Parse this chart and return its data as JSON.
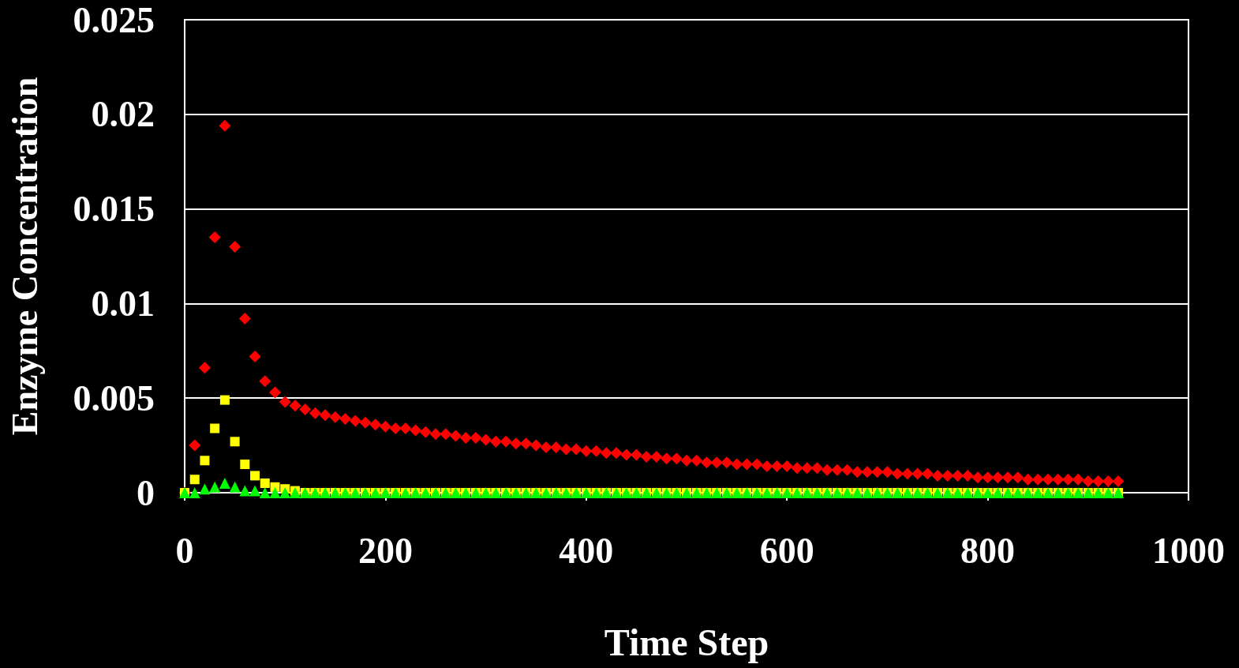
{
  "chart_data": {
    "type": "scatter",
    "xlabel": "Time Step",
    "ylabel": "Enzyme Concentration",
    "x": [
      0,
      10,
      20,
      30,
      40,
      50,
      60,
      70,
      80,
      90,
      100,
      110,
      120,
      130,
      140,
      150,
      160,
      170,
      180,
      190,
      200,
      210,
      220,
      230,
      240,
      250,
      260,
      270,
      280,
      290,
      300,
      310,
      320,
      330,
      340,
      350,
      360,
      370,
      380,
      390,
      400,
      410,
      420,
      430,
      440,
      450,
      460,
      470,
      480,
      490,
      500,
      510,
      520,
      530,
      540,
      550,
      560,
      570,
      580,
      590,
      600,
      610,
      620,
      630,
      640,
      650,
      660,
      670,
      680,
      690,
      700,
      710,
      720,
      730,
      740,
      750,
      760,
      770,
      780,
      790,
      800,
      810,
      820,
      830,
      840,
      850,
      860,
      870,
      880,
      890,
      900,
      910,
      920,
      930
    ],
    "series": [
      {
        "color": "#ff0000",
        "marker": "diamond",
        "values": [
          0,
          0.0025,
          0.0066,
          0.0135,
          0.0194,
          0.013,
          0.0092,
          0.0072,
          0.0059,
          0.0053,
          0.0048,
          0.0046,
          0.0044,
          0.0042,
          0.0041,
          0.004,
          0.0039,
          0.0038,
          0.0037,
          0.0036,
          0.0035,
          0.0034,
          0.0034,
          0.0033,
          0.0032,
          0.0031,
          0.0031,
          0.003,
          0.0029,
          0.0029,
          0.0028,
          0.0027,
          0.0027,
          0.0026,
          0.0026,
          0.0025,
          0.0024,
          0.0024,
          0.0023,
          0.0023,
          0.0022,
          0.0022,
          0.0021,
          0.0021,
          0.002,
          0.002,
          0.0019,
          0.0019,
          0.0018,
          0.0018,
          0.0017,
          0.0017,
          0.0016,
          0.0016,
          0.0016,
          0.0015,
          0.0015,
          0.0015,
          0.0014,
          0.0014,
          0.0014,
          0.0013,
          0.0013,
          0.0013,
          0.0012,
          0.0012,
          0.0012,
          0.0011,
          0.0011,
          0.0011,
          0.0011,
          0.001,
          0.001,
          0.001,
          0.001,
          0.0009,
          0.0009,
          0.0009,
          0.0009,
          0.0008,
          0.0008,
          0.0008,
          0.0008,
          0.0008,
          0.0007,
          0.0007,
          0.0007,
          0.0007,
          0.0007,
          0.0007,
          0.0006,
          0.0006,
          0.0006,
          0.0006
        ]
      },
      {
        "color": "#ffff00",
        "marker": "square",
        "values": [
          0,
          0.0007,
          0.0017,
          0.0034,
          0.0049,
          0.0027,
          0.0015,
          0.0009,
          0.0005,
          0.0003,
          0.0002,
          0.0001,
          0,
          0,
          0,
          0,
          0,
          0,
          0,
          0,
          0,
          0,
          0,
          0,
          0,
          0,
          0,
          0,
          0,
          0,
          0,
          0,
          0,
          0,
          0,
          0,
          0,
          0,
          0,
          0,
          0,
          0,
          0,
          0,
          0,
          0,
          0,
          0,
          0,
          0,
          0,
          0,
          0,
          0,
          0,
          0,
          0,
          0,
          0,
          0,
          0,
          0,
          0,
          0,
          0,
          0,
          0,
          0,
          0,
          0,
          0,
          0,
          0,
          0,
          0,
          0,
          0,
          0,
          0,
          0,
          0,
          0,
          0,
          0,
          0,
          0,
          0,
          0,
          0,
          0,
          0,
          0,
          0,
          0
        ]
      },
      {
        "color": "#00ff00",
        "marker": "triangle",
        "values": [
          0,
          0,
          0.0002,
          0.0003,
          0.0005,
          0.0003,
          0.0001,
          0.0001,
          0,
          0,
          0,
          0,
          0,
          0,
          0,
          0,
          0,
          0,
          0,
          0,
          0,
          0,
          0,
          0,
          0,
          0,
          0,
          0,
          0,
          0,
          0,
          0,
          0,
          0,
          0,
          0,
          0,
          0,
          0,
          0,
          0,
          0,
          0,
          0,
          0,
          0,
          0,
          0,
          0,
          0,
          0,
          0,
          0,
          0,
          0,
          0,
          0,
          0,
          0,
          0,
          0,
          0,
          0,
          0,
          0,
          0,
          0,
          0,
          0,
          0,
          0,
          0,
          0,
          0,
          0,
          0,
          0,
          0,
          0,
          0,
          0,
          0,
          0,
          0,
          0,
          0,
          0,
          0,
          0,
          0,
          0,
          0,
          0,
          0
        ]
      }
    ],
    "xlim": [
      0,
      1000
    ],
    "xticks": [
      0,
      200,
      400,
      600,
      800,
      1000
    ],
    "ylim": [
      0,
      0.025
    ],
    "yticks": [
      0,
      0.005,
      0.01,
      0.015,
      0.02,
      0.025
    ],
    "grid": "y"
  }
}
